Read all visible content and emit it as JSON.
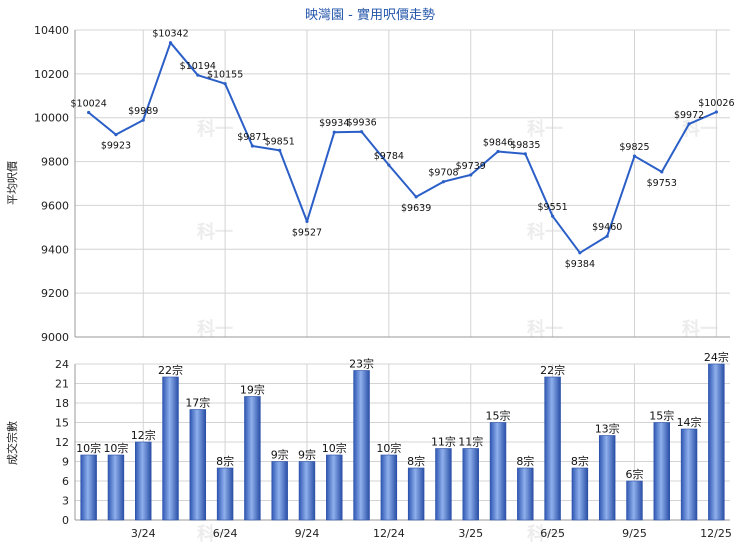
{
  "chart_data": [
    {
      "type": "line",
      "title": "映灣園 - 實用呎價走勢",
      "ylabel": "平均呎價",
      "ylim": [
        9000,
        10400
      ],
      "yticks": [
        9000,
        9200,
        9400,
        9600,
        9800,
        10000,
        10200,
        10400
      ],
      "grid": true,
      "color": "#2b5fc7",
      "series": [
        {
          "values": [
            10024,
            9923,
            9989,
            10342,
            10194,
            10155,
            9871,
            9851,
            9527,
            9934,
            9936,
            9784,
            9639,
            9708,
            9739,
            9846,
            9835,
            9551,
            9384,
            9460,
            9825,
            9753,
            9972,
            10026
          ],
          "labels": [
            "$10024",
            "$9923",
            "$9989",
            "$10342",
            "$10194",
            "$10155",
            "$9871",
            "$9851",
            "$9527",
            "$9934",
            "$9936",
            "$9784",
            "$9639",
            "$9708",
            "$9739",
            "$9846",
            "$9835",
            "$9551",
            "$9384",
            "$9460",
            "$9825",
            "$9753",
            "$9972",
            "$10026"
          ]
        }
      ]
    },
    {
      "type": "bar",
      "ylabel": "成交宗數",
      "ylim": [
        0,
        24
      ],
      "yticks": [
        0,
        3,
        6,
        9,
        12,
        15,
        18,
        21,
        24
      ],
      "grid": true,
      "color": "#3a66c4",
      "x_tick_labels": [
        "",
        "",
        "3/24",
        "",
        "",
        "6/24",
        "",
        "",
        "9/24",
        "",
        "",
        "12/24",
        "",
        "",
        "3/25",
        "",
        "",
        "6/25",
        "",
        "",
        "9/25",
        "",
        "",
        "12/25"
      ],
      "values": [
        10,
        10,
        12,
        22,
        17,
        8,
        19,
        9,
        9,
        10,
        23,
        10,
        8,
        11,
        11,
        15,
        8,
        22,
        8,
        13,
        6,
        15,
        14,
        24
      ],
      "labels": [
        "10宗",
        "10宗",
        "12宗",
        "22宗",
        "17宗",
        "8宗",
        "19宗",
        "9宗",
        "9宗",
        "10宗",
        "23宗",
        "10宗",
        "8宗",
        "11宗",
        "11宗",
        "15宗",
        "8宗",
        "22宗",
        "8宗",
        "13宗",
        "6宗",
        "15宗",
        "14宗",
        "24宗"
      ]
    }
  ],
  "watermark": "科一"
}
